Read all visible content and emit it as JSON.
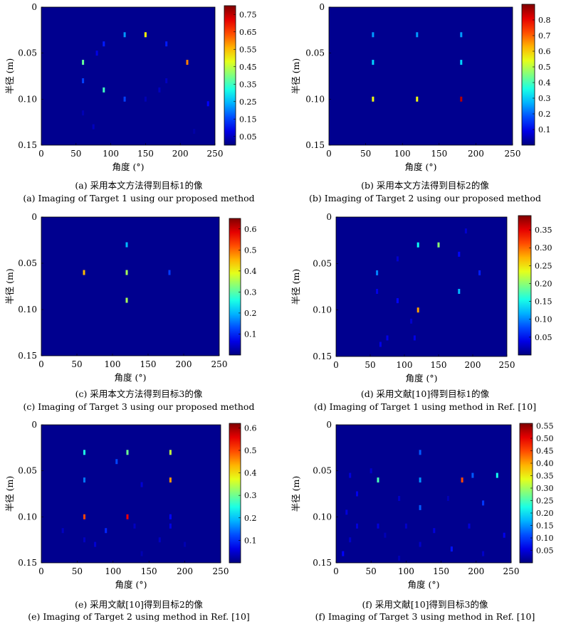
{
  "colormap": {
    "background": "#00008f",
    "frame": "#000000"
  },
  "chart_data": [
    {
      "type": "heatmap",
      "caption_cn": "(a) 采用本文方法得到目标1的像",
      "caption_en": "(a) Imaging of Target 1 using our proposed method",
      "xlabel": "角度 (°)",
      "ylabel": "半径 (m)",
      "xlim": [
        0,
        250
      ],
      "ylim": [
        0,
        0.15
      ],
      "xticks": [
        "0",
        "50",
        "100",
        "150",
        "200",
        "250"
      ],
      "yticks": [
        "0",
        "0.05",
        "0.10",
        "0.15"
      ],
      "clim": [
        0,
        0.8
      ],
      "cbticks": [
        "0.05",
        "0.15",
        "0.25",
        "0.35",
        "0.45",
        "0.55",
        "0.65",
        "0.75"
      ],
      "cbtick_values": [
        0.05,
        0.15,
        0.25,
        0.35,
        0.45,
        0.55,
        0.65,
        0.75
      ],
      "points": [
        {
          "x": 120,
          "y": 0.03,
          "v": 0.22
        },
        {
          "x": 150,
          "y": 0.03,
          "v": 0.5
        },
        {
          "x": 90,
          "y": 0.04,
          "v": 0.12
        },
        {
          "x": 180,
          "y": 0.04,
          "v": 0.12
        },
        {
          "x": 80,
          "y": 0.05,
          "v": 0.08
        },
        {
          "x": 60,
          "y": 0.06,
          "v": 0.38
        },
        {
          "x": 210,
          "y": 0.06,
          "v": 0.6
        },
        {
          "x": 60,
          "y": 0.08,
          "v": 0.15
        },
        {
          "x": 180,
          "y": 0.08,
          "v": 0.05
        },
        {
          "x": 90,
          "y": 0.09,
          "v": 0.35
        },
        {
          "x": 170,
          "y": 0.09,
          "v": 0.05
        },
        {
          "x": 120,
          "y": 0.1,
          "v": 0.15
        },
        {
          "x": 150,
          "y": 0.1,
          "v": 0.04
        },
        {
          "x": 240,
          "y": 0.105,
          "v": 0.1
        },
        {
          "x": 60,
          "y": 0.115,
          "v": 0.04
        },
        {
          "x": 75,
          "y": 0.13,
          "v": 0.05
        },
        {
          "x": 220,
          "y": 0.135,
          "v": 0.03
        }
      ]
    },
    {
      "type": "heatmap",
      "caption_cn": "(b) 采用本文方法得到目标2的像",
      "caption_en": "(b) Imaging of Target 2 using our proposed method",
      "xlabel": "角度 (°)",
      "ylabel": "半径 (m)",
      "xlim": [
        0,
        250
      ],
      "ylim": [
        0,
        0.15
      ],
      "xticks": [
        "0",
        "50",
        "100",
        "150",
        "200",
        "250"
      ],
      "yticks": [
        "0",
        "0.05",
        "0.10",
        "0.15"
      ],
      "clim": [
        0,
        0.9
      ],
      "cbticks": [
        "0.1",
        "0.2",
        "0.3",
        "0.4",
        "0.5",
        "0.6",
        "0.7",
        "0.8"
      ],
      "cbtick_values": [
        0.1,
        0.2,
        0.3,
        0.4,
        0.5,
        0.6,
        0.7,
        0.8
      ],
      "points": [
        {
          "x": 60,
          "y": 0.03,
          "v": 0.25
        },
        {
          "x": 120,
          "y": 0.03,
          "v": 0.25
        },
        {
          "x": 180,
          "y": 0.03,
          "v": 0.25
        },
        {
          "x": 60,
          "y": 0.06,
          "v": 0.3
        },
        {
          "x": 180,
          "y": 0.06,
          "v": 0.3
        },
        {
          "x": 60,
          "y": 0.1,
          "v": 0.55
        },
        {
          "x": 120,
          "y": 0.1,
          "v": 0.55
        },
        {
          "x": 180,
          "y": 0.1,
          "v": 0.85
        }
      ]
    },
    {
      "type": "heatmap",
      "caption_cn": "(c) 采用本文方法得到目标3的像",
      "caption_en": "(c) Imaging of Target 3 using our proposed method",
      "xlabel": "角度 (°)",
      "ylabel": "半径 (m)",
      "xlim": [
        0,
        250
      ],
      "ylim": [
        0,
        0.15
      ],
      "xticks": [
        "0",
        "50",
        "100",
        "150",
        "200",
        "250"
      ],
      "yticks": [
        "0",
        "0.05",
        "0.10",
        "0.15"
      ],
      "clim": [
        0,
        0.65
      ],
      "cbticks": [
        "0.1",
        "0.2",
        "0.3",
        "0.4",
        "0.5",
        "0.6"
      ],
      "cbtick_values": [
        0.1,
        0.2,
        0.3,
        0.4,
        0.5,
        0.6
      ],
      "points": [
        {
          "x": 120,
          "y": 0.03,
          "v": 0.2
        },
        {
          "x": 60,
          "y": 0.06,
          "v": 0.45
        },
        {
          "x": 120,
          "y": 0.06,
          "v": 0.35
        },
        {
          "x": 180,
          "y": 0.06,
          "v": 0.12
        },
        {
          "x": 120,
          "y": 0.09,
          "v": 0.35
        }
      ]
    },
    {
      "type": "heatmap",
      "caption_cn": "(d) 采用文献[10]得到目标1的像",
      "caption_en": "(d) Imaging of Target 1 using method in Ref. [10]",
      "xlabel": "角度 (°)",
      "ylabel": "半径 (m)",
      "xlim": [
        0,
        250
      ],
      "ylim": [
        0,
        0.15
      ],
      "xticks": [
        "0",
        "50",
        "100",
        "150",
        "200",
        "250"
      ],
      "yticks": [
        "0",
        "0.05",
        "0.10",
        "0.15"
      ],
      "clim": [
        0,
        0.39
      ],
      "cbticks": [
        "0.05",
        "0.10",
        "0.15",
        "0.20",
        "0.25",
        "0.30",
        "0.35"
      ],
      "cbtick_values": [
        0.05,
        0.1,
        0.15,
        0.2,
        0.25,
        0.3,
        0.35
      ],
      "points": [
        {
          "x": 120,
          "y": 0.03,
          "v": 0.15
        },
        {
          "x": 150,
          "y": 0.03,
          "v": 0.2
        },
        {
          "x": 180,
          "y": 0.04,
          "v": 0.05
        },
        {
          "x": 90,
          "y": 0.045,
          "v": 0.03
        },
        {
          "x": 60,
          "y": 0.06,
          "v": 0.1
        },
        {
          "x": 210,
          "y": 0.06,
          "v": 0.06
        },
        {
          "x": 60,
          "y": 0.08,
          "v": 0.04
        },
        {
          "x": 180,
          "y": 0.08,
          "v": 0.12
        },
        {
          "x": 90,
          "y": 0.09,
          "v": 0.05
        },
        {
          "x": 120,
          "y": 0.1,
          "v": 0.28
        },
        {
          "x": 110,
          "y": 0.112,
          "v": 0.03
        },
        {
          "x": 75,
          "y": 0.13,
          "v": 0.04
        },
        {
          "x": 115,
          "y": 0.13,
          "v": 0.04
        },
        {
          "x": 65,
          "y": 0.137,
          "v": 0.04
        },
        {
          "x": 190,
          "y": 0.015,
          "v": 0.03
        }
      ]
    },
    {
      "type": "heatmap",
      "caption_cn": "(e) 采用文献[10]得到目标2的像",
      "caption_en": "(e) Imaging of Target 2 using method in Ref. [10]",
      "xlabel": "角度 (°)",
      "ylabel": "半径 (m)",
      "xlim": [
        0,
        250
      ],
      "ylim": [
        0,
        0.15
      ],
      "xticks": [
        "0",
        "50",
        "100",
        "150",
        "200",
        "250"
      ],
      "yticks": [
        "0",
        "0.05",
        "0.10",
        "0.15"
      ],
      "clim": [
        0,
        0.62
      ],
      "cbticks": [
        "0.1",
        "0.2",
        "0.3",
        "0.4",
        "0.5",
        "0.6"
      ],
      "cbtick_values": [
        0.1,
        0.2,
        0.3,
        0.4,
        0.5,
        0.6
      ],
      "points": [
        {
          "x": 60,
          "y": 0.03,
          "v": 0.25
        },
        {
          "x": 120,
          "y": 0.03,
          "v": 0.3
        },
        {
          "x": 180,
          "y": 0.03,
          "v": 0.35
        },
        {
          "x": 105,
          "y": 0.04,
          "v": 0.12
        },
        {
          "x": 60,
          "y": 0.06,
          "v": 0.15
        },
        {
          "x": 180,
          "y": 0.06,
          "v": 0.45
        },
        {
          "x": 140,
          "y": 0.065,
          "v": 0.05
        },
        {
          "x": 60,
          "y": 0.1,
          "v": 0.5
        },
        {
          "x": 120,
          "y": 0.1,
          "v": 0.55
        },
        {
          "x": 180,
          "y": 0.1,
          "v": 0.08
        },
        {
          "x": 30,
          "y": 0.115,
          "v": 0.04
        },
        {
          "x": 90,
          "y": 0.115,
          "v": 0.1
        },
        {
          "x": 130,
          "y": 0.11,
          "v": 0.04
        },
        {
          "x": 180,
          "y": 0.11,
          "v": 0.06
        },
        {
          "x": 60,
          "y": 0.125,
          "v": 0.04
        },
        {
          "x": 75,
          "y": 0.13,
          "v": 0.05
        },
        {
          "x": 165,
          "y": 0.125,
          "v": 0.04
        },
        {
          "x": 200,
          "y": 0.13,
          "v": 0.03
        },
        {
          "x": 140,
          "y": 0.14,
          "v": 0.03
        }
      ]
    },
    {
      "type": "heatmap",
      "caption_cn": "(f) 采用文献[10]得到目标3的像",
      "caption_en": "(f) Imaging of Target 3 using method in Ref. [10]",
      "xlabel": "角度 (°)",
      "ylabel": "半径 (m)",
      "xlim": [
        0,
        250
      ],
      "ylim": [
        0,
        0.15
      ],
      "xticks": [
        "0",
        "50",
        "100",
        "150",
        "200",
        "250"
      ],
      "yticks": [
        "0",
        "0.05",
        "0.10",
        "0.15"
      ],
      "clim": [
        0,
        0.56
      ],
      "cbticks": [
        "0.05",
        "0.10",
        "0.15",
        "0.20",
        "0.25",
        "0.30",
        "0.35",
        "0.40",
        "0.45",
        "0.50",
        "0.55"
      ],
      "cbtick_values": [
        0.05,
        0.1,
        0.15,
        0.2,
        0.25,
        0.3,
        0.35,
        0.4,
        0.45,
        0.5,
        0.55
      ],
      "points": [
        {
          "x": 120,
          "y": 0.03,
          "v": 0.12
        },
        {
          "x": 60,
          "y": 0.06,
          "v": 0.25
        },
        {
          "x": 120,
          "y": 0.06,
          "v": 0.15
        },
        {
          "x": 180,
          "y": 0.06,
          "v": 0.45
        },
        {
          "x": 195,
          "y": 0.055,
          "v": 0.12
        },
        {
          "x": 230,
          "y": 0.055,
          "v": 0.22
        },
        {
          "x": 20,
          "y": 0.055,
          "v": 0.05
        },
        {
          "x": 50,
          "y": 0.05,
          "v": 0.04
        },
        {
          "x": 30,
          "y": 0.075,
          "v": 0.06
        },
        {
          "x": 90,
          "y": 0.08,
          "v": 0.04
        },
        {
          "x": 210,
          "y": 0.085,
          "v": 0.1
        },
        {
          "x": 120,
          "y": 0.09,
          "v": 0.12
        },
        {
          "x": 160,
          "y": 0.08,
          "v": 0.03
        },
        {
          "x": 15,
          "y": 0.095,
          "v": 0.05
        },
        {
          "x": 30,
          "y": 0.11,
          "v": 0.05
        },
        {
          "x": 60,
          "y": 0.11,
          "v": 0.05
        },
        {
          "x": 100,
          "y": 0.11,
          "v": 0.04
        },
        {
          "x": 140,
          "y": 0.115,
          "v": 0.05
        },
        {
          "x": 190,
          "y": 0.11,
          "v": 0.05
        },
        {
          "x": 240,
          "y": 0.12,
          "v": 0.06
        },
        {
          "x": 20,
          "y": 0.125,
          "v": 0.04
        },
        {
          "x": 70,
          "y": 0.12,
          "v": 0.03
        },
        {
          "x": 120,
          "y": 0.13,
          "v": 0.04
        },
        {
          "x": 165,
          "y": 0.135,
          "v": 0.08
        },
        {
          "x": 210,
          "y": 0.14,
          "v": 0.04
        },
        {
          "x": 10,
          "y": 0.14,
          "v": 0.07
        },
        {
          "x": 90,
          "y": 0.145,
          "v": 0.03
        }
      ]
    }
  ]
}
